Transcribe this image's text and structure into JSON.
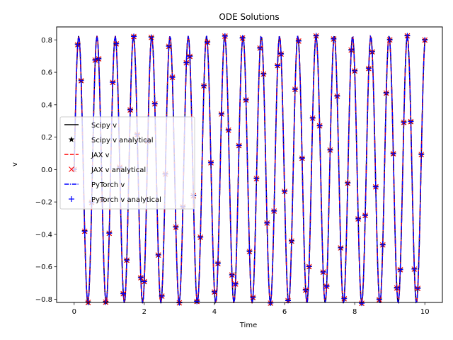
{
  "chart_data": {
    "type": "line",
    "title": "ODE Solutions",
    "xlabel": "Time",
    "ylabel": "v",
    "xlim": [
      -0.5,
      10.5
    ],
    "ylim": [
      -0.82,
      0.88
    ],
    "xticks": [
      "0",
      "2",
      "4",
      "6",
      "8",
      "10"
    ],
    "yticks": [
      "−0.8",
      "−0.6",
      "−0.4",
      "−0.2",
      "0.0",
      "0.2",
      "0.4",
      "0.6",
      "0.8"
    ],
    "grid": false,
    "legend_position": "center-left",
    "signal": {
      "amplitude": 0.825,
      "angular_frequency": 12.07,
      "x_start": 0,
      "x_end": 10,
      "sample_count": 401,
      "marker_count": 101
    },
    "series": [
      {
        "name": "Scipy v",
        "style": "line",
        "color": "#000000",
        "dash": "solid"
      },
      {
        "name": "Scipy v analytical",
        "style": "marker",
        "marker": "star",
        "color": "#000000"
      },
      {
        "name": "JAX v",
        "style": "line",
        "color": "#ff0000",
        "dash": "dashed"
      },
      {
        "name": "JAX v analytical",
        "style": "marker",
        "marker": "x",
        "color": "#ff0000"
      },
      {
        "name": "PyTorch v",
        "style": "line",
        "color": "#0000ff",
        "dash": "dashdot"
      },
      {
        "name": "PyTorch v analytical",
        "style": "marker",
        "marker": "plus",
        "color": "#0000ff"
      }
    ]
  }
}
